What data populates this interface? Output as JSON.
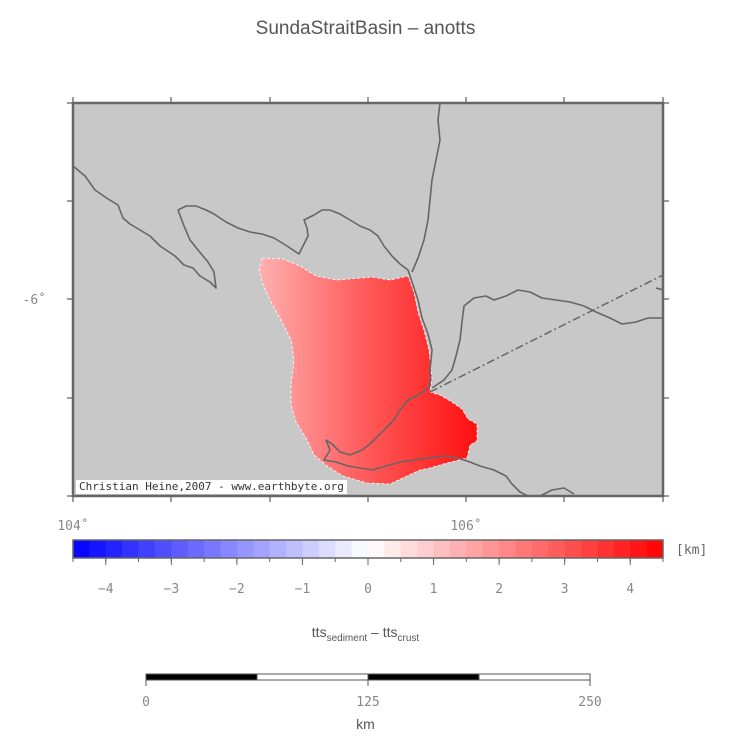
{
  "title": "SundaStraitBasin – anotts",
  "map": {
    "lat_ticks": [
      "-6˚"
    ],
    "lon_ticks": [
      "104˚",
      "106˚"
    ],
    "credit": "Christian Heine,2007 - www.earthbyte.org",
    "land_color": "#c8c8c8",
    "coast_color": "#666666"
  },
  "colorbar": {
    "unit": "[km]",
    "ticks": [
      "−4",
      "−3",
      "−2",
      "−1",
      "0",
      "1",
      "2",
      "3",
      "4"
    ],
    "range": [
      -4.5,
      4.5
    ],
    "low_color": "#0000ff",
    "mid_color": "#ffffff",
    "high_color": "#ff0000",
    "label_main1": "tts",
    "label_sub1": "sediment",
    "label_sep": " – ",
    "label_main2": "tts",
    "label_sub2": "crust"
  },
  "scalebar": {
    "ticks": [
      "0",
      "125",
      "250"
    ],
    "unit": "km"
  }
}
